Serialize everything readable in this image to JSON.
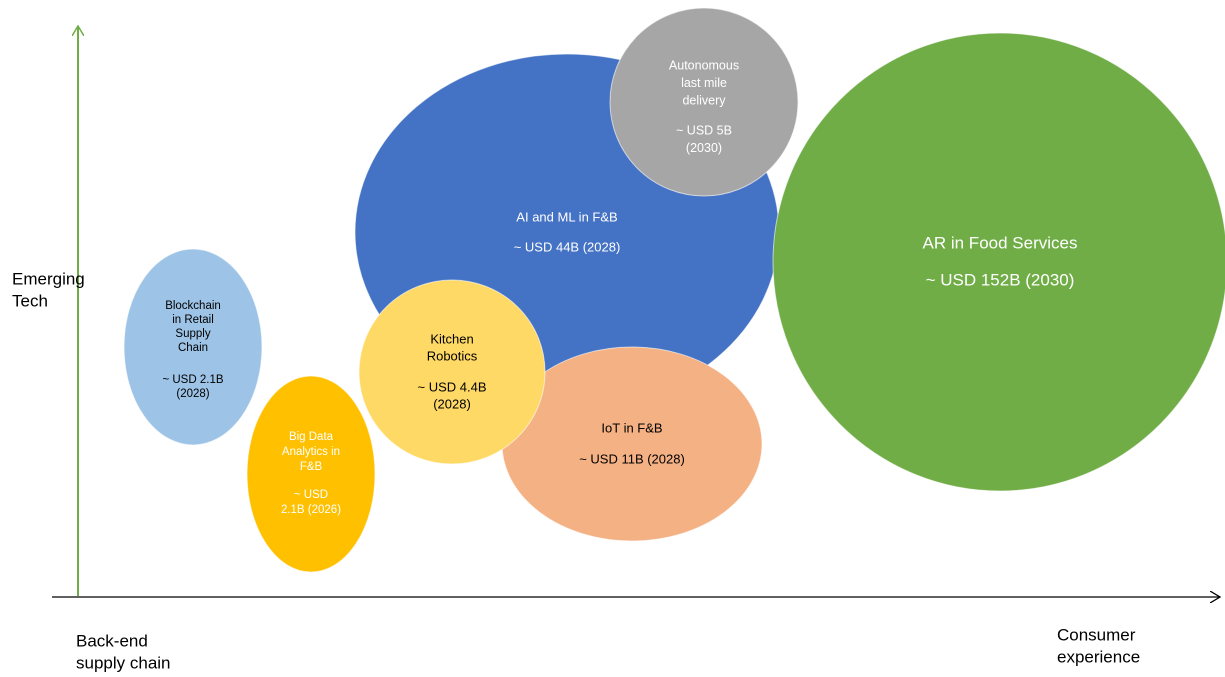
{
  "axes": {
    "y_label": [
      "Emerging",
      "Tech"
    ],
    "x_start_label": [
      "Back-end",
      "supply chain"
    ],
    "x_end_label": [
      "Consumer",
      "experience"
    ]
  },
  "bubbles": [
    {
      "name": [
        "Blockchain",
        "in Retail",
        "Supply",
        "Chain"
      ],
      "value": [
        "~ USD 2.1B",
        "(2028)"
      ]
    },
    {
      "name": [
        "Big Data",
        "Analytics in",
        "F&B"
      ],
      "value": [
        "~ USD",
        "2.1B (2026)"
      ]
    },
    {
      "name": [
        "AI and ML in F&B"
      ],
      "value": [
        "~ USD 44B (2028)"
      ]
    },
    {
      "name": [
        "Autonomous",
        "last mile",
        "delivery"
      ],
      "value": [
        "~ USD 5B",
        "(2030)"
      ]
    },
    {
      "name": [
        "Kitchen",
        "Robotics"
      ],
      "value": [
        "~ USD 4.4B",
        "(2028)"
      ]
    },
    {
      "name": [
        "IoT in F&B"
      ],
      "value": [
        "~ USD 11B (2028)"
      ]
    },
    {
      "name": [
        "AR in Food Services"
      ],
      "value": [
        "~ USD 152B (2030)"
      ]
    }
  ]
}
